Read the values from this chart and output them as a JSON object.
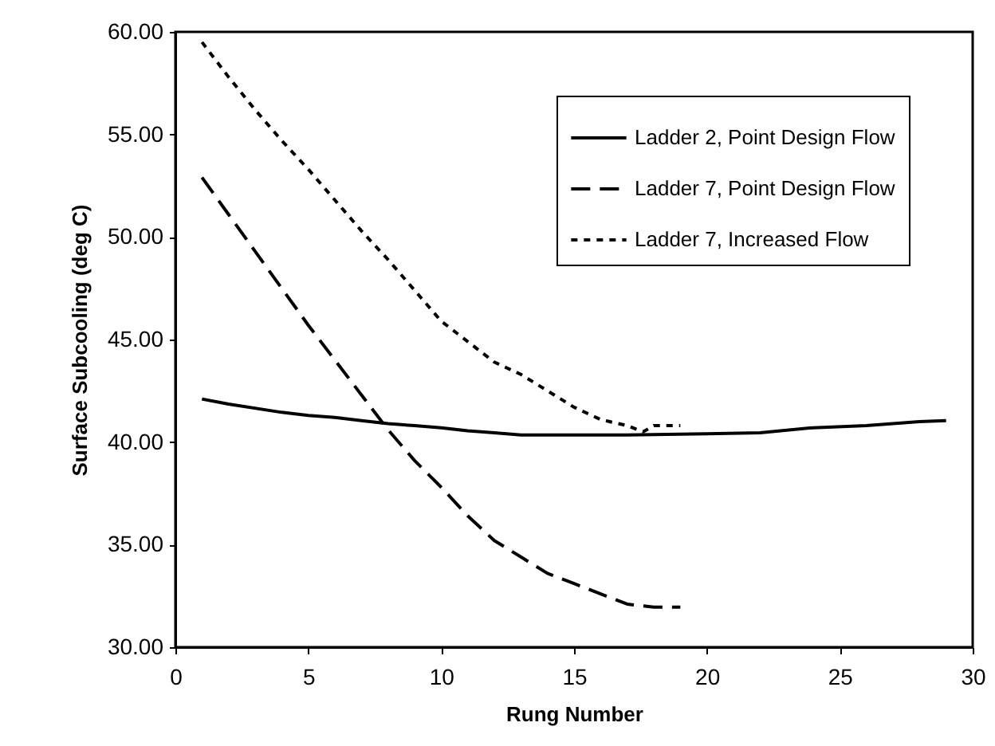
{
  "chart_data": {
    "type": "line",
    "xlabel": "Rung Number",
    "ylabel": "Surface Subcooling (deg C)",
    "xlim": [
      0,
      30
    ],
    "xticks": [
      0,
      5,
      10,
      15,
      20,
      25,
      30
    ],
    "ylim": [
      30,
      60
    ],
    "yticks": [
      {
        "value": 30,
        "label": "30.00"
      },
      {
        "value": 35,
        "label": "35.00"
      },
      {
        "value": 40,
        "label": "40.00"
      },
      {
        "value": 45,
        "label": "45.00"
      },
      {
        "value": 50,
        "label": "50.00"
      },
      {
        "value": 55,
        "label": "55.00"
      },
      {
        "value": 60,
        "label": "60.00"
      }
    ],
    "grid": false,
    "legend": "top right",
    "marker": "none",
    "series": [
      {
        "name": "Ladder 2, Point Design Flow",
        "color": "#000000",
        "line_style": "solid",
        "x": [
          1,
          2,
          4,
          5,
          6,
          7,
          8,
          9,
          10,
          11,
          12,
          13,
          15,
          17,
          20,
          22,
          24,
          26,
          28,
          29
        ],
        "values": [
          42.1,
          41.85,
          41.45,
          41.3,
          41.2,
          41.05,
          40.9,
          40.8,
          40.7,
          40.55,
          40.45,
          40.35,
          40.35,
          40.35,
          40.4,
          40.45,
          40.7,
          40.8,
          41.0,
          41.05
        ]
      },
      {
        "name": "Ladder 7, Point Design Flow",
        "color": "#000000",
        "line_style": "dashed",
        "x": [
          1,
          2,
          3,
          4,
          5,
          6,
          7,
          8,
          9,
          10,
          11,
          12,
          13,
          14,
          15,
          16,
          17,
          18,
          19
        ],
        "values": [
          52.9,
          51.1,
          49.3,
          47.5,
          45.7,
          44.0,
          42.3,
          40.6,
          39.1,
          37.8,
          36.4,
          35.2,
          34.4,
          33.6,
          33.1,
          32.6,
          32.1,
          31.95,
          31.95
        ]
      },
      {
        "name": "Ladder 7, Increased Flow",
        "color": "#000000",
        "line_style": "dotted",
        "x": [
          1,
          2,
          3,
          4,
          5,
          6,
          7,
          8,
          9,
          10,
          11,
          12,
          13,
          14,
          15,
          16,
          17,
          17.6,
          18,
          19
        ],
        "values": [
          59.5,
          57.8,
          56.2,
          54.7,
          53.3,
          51.8,
          50.3,
          48.9,
          47.4,
          45.9,
          44.9,
          43.9,
          43.3,
          42.5,
          41.7,
          41.1,
          40.8,
          40.5,
          40.8,
          40.8
        ]
      }
    ]
  }
}
